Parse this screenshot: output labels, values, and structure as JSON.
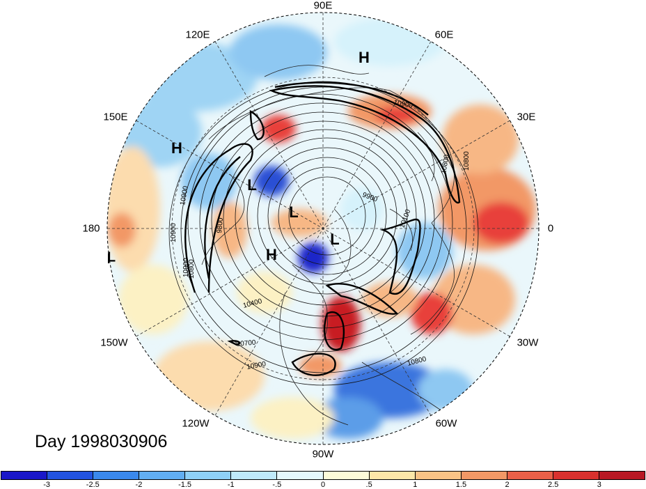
{
  "map": {
    "projection": "north polar stereographic",
    "field_colors": {
      "deep_blue": "#1f25c9",
      "blue": "#3a75de",
      "light_blue": "#8ec8f2",
      "pale_blue": "#d6f2fb",
      "pale_yellow": "#fcf1c4",
      "peach": "#f7b785",
      "red": "#e8413a",
      "dark_red": "#a8141e"
    },
    "longitude_labels": [
      "90E",
      "60E",
      "30E",
      "0",
      "30W",
      "60W",
      "90W",
      "120W",
      "150W",
      "180",
      "150E",
      "120E"
    ],
    "pressure_centers": [
      "H",
      "H",
      "L",
      "L",
      "L",
      "H",
      "L"
    ],
    "contour_labels": [
      "10900",
      "10800",
      "9900",
      "10900",
      "10800",
      "10900",
      "9800",
      "10100",
      "10400",
      "10700",
      "10900",
      "10800",
      "10900",
      "10800"
    ]
  },
  "title": {
    "day_label": "Day 1998030906"
  },
  "colorbar": {
    "colors": [
      "#1a17c9",
      "#2353e0",
      "#3a88ec",
      "#62aef2",
      "#8fd0f7",
      "#bfeafb",
      "#e5f8fd",
      "#fdfbd9",
      "#fde7a8",
      "#f9c386",
      "#f29866",
      "#ea6048",
      "#d9312e",
      "#b81824"
    ],
    "tick_labels": [
      "-3",
      "-2.5",
      "-2",
      "-1.5",
      "-1",
      "-.5",
      "0",
      ".5",
      "1",
      "1.5",
      "2",
      "2.5",
      "3"
    ]
  }
}
